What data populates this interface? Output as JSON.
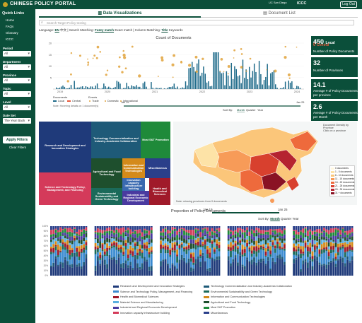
{
  "header": {
    "title": "CHINESE POLICY PORTAL",
    "ucsd_label": "UC San Diego",
    "iccc_label": "ICCC",
    "logout_label": "Log Out"
  },
  "sidebar": {
    "quick_links_label": "Quick Links",
    "links": [
      "Home",
      "FAQs",
      "Glossary",
      "ICCC"
    ],
    "filters": [
      {
        "label": "Period",
        "value": "All"
      },
      {
        "label": "Department",
        "value": "All"
      },
      {
        "label": "Province",
        "value": "All"
      },
      {
        "label": "Topic",
        "value": "All"
      },
      {
        "label": "Level",
        "value": "All"
      },
      {
        "label": "Date Set",
        "value": "The Year Back"
      }
    ],
    "apply_label": "Apply Filters",
    "clear_label": "Clear Filters"
  },
  "tabs": [
    {
      "label": "Data Visualizations"
    },
    {
      "label": "Document List"
    }
  ],
  "search": {
    "placeholder": "Search Target Policy texting"
  },
  "options": {
    "language_label": "Language:",
    "lang_en": "EN",
    "lang_cn": "中文",
    "matching_label": "Search Matching:",
    "fuzzy": "Fuzzy match",
    "exact": "Exact match",
    "column_label": "Column Matching:",
    "title_opt": "Title",
    "keywords_opt": "Keywords"
  },
  "time_chart": {
    "title": "Count of Documents",
    "y_ticks": [
      "20",
      "15",
      "10",
      "5"
    ],
    "x_ticks": [
      "2019",
      "2020",
      "2021",
      "2022",
      "2023",
      "2024"
    ],
    "legend_docs": "Documents",
    "legend_events": "Events",
    "levels": [
      "Local",
      "Central"
    ],
    "event_types": [
      "Trade",
      "Domestic",
      "International"
    ],
    "note": "Note: Hovering details on 1 document(s)",
    "range_start": "Jan 19",
    "range_end": "Jan 25",
    "sort_label": "Sort By:",
    "sort_month": "Month",
    "sort_quarter": "Quarter",
    "sort_year": "Year",
    "colors": {
      "bar": "#1f6b8a",
      "dot": "#e0a23a",
      "accent": "#0b4f3a"
    }
  },
  "stats": [
    {
      "value": "450",
      "value_suffix": "Local",
      "value2": "0",
      "value2_suffix": "Central",
      "label": "Number of Policy Documents"
    },
    {
      "value": "32",
      "label": "Number of Provinces"
    },
    {
      "value": "14.1",
      "label": "Average # of Policy Documents per province"
    },
    {
      "value": "2.6",
      "label": "Average # of Policy Documents per Month"
    }
  ],
  "treemap": {
    "cells": [
      {
        "label": "Research and Development and Innovation Strategies",
        "color": "#1f3a7a"
      },
      {
        "label": "Science and Technology Policy, Management, and Financing",
        "color": "#d43a5a"
      },
      {
        "label": "Technology Commercialization and Industry-Academia Collaboration",
        "color": "#1e5a78"
      },
      {
        "label": "Agricultural and Food Technology",
        "color": "#1e4f2d"
      },
      {
        "label": "Most S&T Promotion",
        "color": "#1f8a3a"
      },
      {
        "label": "Information and Communication Technologies",
        "color": "#d48a1a"
      },
      {
        "label": "Environmental Sustainability and Green Technology",
        "color": "#1b6a5a"
      },
      {
        "label": "Innovation capacity infrastructure building",
        "color": "#3a6ab0"
      },
      {
        "label": "Miscellaneous",
        "color": "#2a3f8a"
      },
      {
        "label": "Industrial and Regional Economic Development",
        "color": "#4a3aa0"
      },
      {
        "label": "Health and Biomedical Sciences",
        "color": "#a01a2a"
      }
    ]
  },
  "map": {
    "title": "Document Density by Province",
    "subtitle": "Click on a province",
    "note": "Note: missing provinces from 0 documents",
    "legend": [
      {
        "label": "0 documents",
        "color": "#fff7e0"
      },
      {
        "label": "1 - 5 documents",
        "color": "#fde3a7"
      },
      {
        "label": "6 - 10 documents",
        "color": "#fbc67a"
      },
      {
        "label": "11 - 15 documents",
        "color": "#f79b58"
      },
      {
        "label": "16 - 20 documents",
        "color": "#ee6a3c"
      },
      {
        "label": "21 - 25 documents",
        "color": "#d8402e"
      },
      {
        "label": "26 - 30 documents",
        "color": "#b52330"
      },
      {
        "label": "31 + documents",
        "color": "#8a1224"
      }
    ]
  },
  "proportion": {
    "title": "Proportion of Policy Documents",
    "range_start": "Jan 19",
    "range_end": "Jan 25",
    "sort_label": "Sort By:",
    "sort_month": "Month",
    "sort_quarter": "Quarter",
    "sort_year": "Year",
    "y_ticks": [
      "100%",
      "90%",
      "80%",
      "70%",
      "60%",
      "50%",
      "40%",
      "30%",
      "20%",
      "10%",
      "0%"
    ],
    "legend": [
      {
        "label": "Research and Development and Innovation Strategies",
        "color": "#1f3a7a"
      },
      {
        "label": "Technology Commercialization and Industry-Academia Collaboration",
        "color": "#1e5a78"
      },
      {
        "label": "Science and Technology Policy, Management, and Financing",
        "color": "#3a8ad0"
      },
      {
        "label": "Environmental Sustainability and Green Technology",
        "color": "#1b6a5a"
      },
      {
        "label": "Health and Biomedical Sciences",
        "color": "#a01a2a"
      },
      {
        "label": "Information and Communication Technologies",
        "color": "#d48a1a"
      },
      {
        "label": "Material Science and Manufacturing",
        "color": "#5ab0e0"
      },
      {
        "label": "Agricultural and Food Technology",
        "color": "#1e4f2d"
      },
      {
        "label": "Industrial and Regional Economic Development",
        "color": "#4a3aa0"
      },
      {
        "label": "Most S&T Promotion",
        "color": "#1f8a3a"
      },
      {
        "label": "Innovation capacity infrastructure building",
        "color": "#d43a5a"
      },
      {
        "label": "Miscellaneous",
        "color": "#2a3f8a"
      }
    ]
  }
}
